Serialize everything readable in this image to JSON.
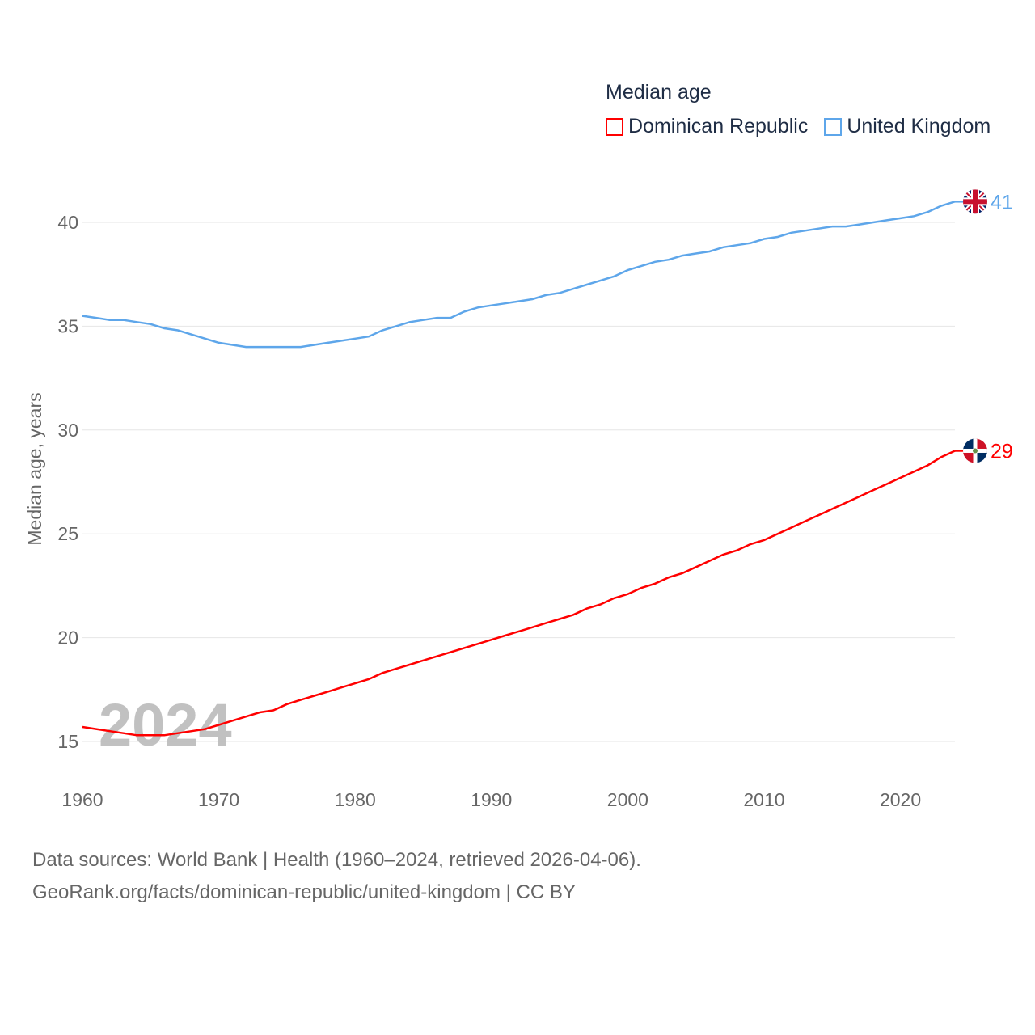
{
  "chart_data": {
    "type": "line",
    "title": "Median age",
    "xlabel": "",
    "ylabel": "Median age, years",
    "xlim": [
      1960,
      2024
    ],
    "ylim": [
      15,
      40
    ],
    "xticks": [
      1960,
      1970,
      1980,
      1990,
      2000,
      2010,
      2020
    ],
    "yticks": [
      15,
      20,
      25,
      30,
      35,
      40
    ],
    "grid": true,
    "legend_placement": "top-right",
    "year_watermark": "2024",
    "x": [
      1960,
      1961,
      1962,
      1963,
      1964,
      1965,
      1966,
      1967,
      1968,
      1969,
      1970,
      1971,
      1972,
      1973,
      1974,
      1975,
      1976,
      1977,
      1978,
      1979,
      1980,
      1981,
      1982,
      1983,
      1984,
      1985,
      1986,
      1987,
      1988,
      1989,
      1990,
      1991,
      1992,
      1993,
      1994,
      1995,
      1996,
      1997,
      1998,
      1999,
      2000,
      2001,
      2002,
      2003,
      2004,
      2005,
      2006,
      2007,
      2008,
      2009,
      2010,
      2011,
      2012,
      2013,
      2014,
      2015,
      2016,
      2017,
      2018,
      2019,
      2020,
      2021,
      2022,
      2023,
      2024
    ],
    "series": [
      {
        "name": "Dominican Republic",
        "color": "#ff0000",
        "end_label": "29",
        "values": [
          15.7,
          15.6,
          15.5,
          15.4,
          15.3,
          15.3,
          15.3,
          15.4,
          15.5,
          15.6,
          15.8,
          16.0,
          16.2,
          16.4,
          16.5,
          16.8,
          17.0,
          17.2,
          17.4,
          17.6,
          17.8,
          18.0,
          18.3,
          18.5,
          18.7,
          18.9,
          19.1,
          19.3,
          19.5,
          19.7,
          19.9,
          20.1,
          20.3,
          20.5,
          20.7,
          20.9,
          21.1,
          21.4,
          21.6,
          21.9,
          22.1,
          22.4,
          22.6,
          22.9,
          23.1,
          23.4,
          23.7,
          24.0,
          24.2,
          24.5,
          24.7,
          25.0,
          25.3,
          25.6,
          25.9,
          26.2,
          26.5,
          26.8,
          27.1,
          27.4,
          27.7,
          28.0,
          28.3,
          28.7,
          29.0
        ]
      },
      {
        "name": "United Kingdom",
        "color": "#5ea6ea",
        "end_label": "41",
        "values": [
          35.5,
          35.4,
          35.3,
          35.3,
          35.2,
          35.1,
          34.9,
          34.8,
          34.6,
          34.4,
          34.2,
          34.1,
          34.0,
          34.0,
          34.0,
          34.0,
          34.0,
          34.1,
          34.2,
          34.3,
          34.4,
          34.5,
          34.8,
          35.0,
          35.2,
          35.3,
          35.4,
          35.4,
          35.7,
          35.9,
          36.0,
          36.1,
          36.2,
          36.3,
          36.5,
          36.6,
          36.8,
          37.0,
          37.2,
          37.4,
          37.7,
          37.9,
          38.1,
          38.2,
          38.4,
          38.5,
          38.6,
          38.8,
          38.9,
          39.0,
          39.2,
          39.3,
          39.5,
          39.6,
          39.7,
          39.8,
          39.8,
          39.9,
          40.0,
          40.1,
          40.2,
          40.3,
          40.5,
          40.8,
          41.0
        ]
      }
    ]
  },
  "footer": {
    "line1": "Data sources: World Bank | Health (1960–2024, retrieved 2026-04-06).",
    "line2": "GeoRank.org/facts/dominican-republic/united-kingdom | CC BY"
  }
}
